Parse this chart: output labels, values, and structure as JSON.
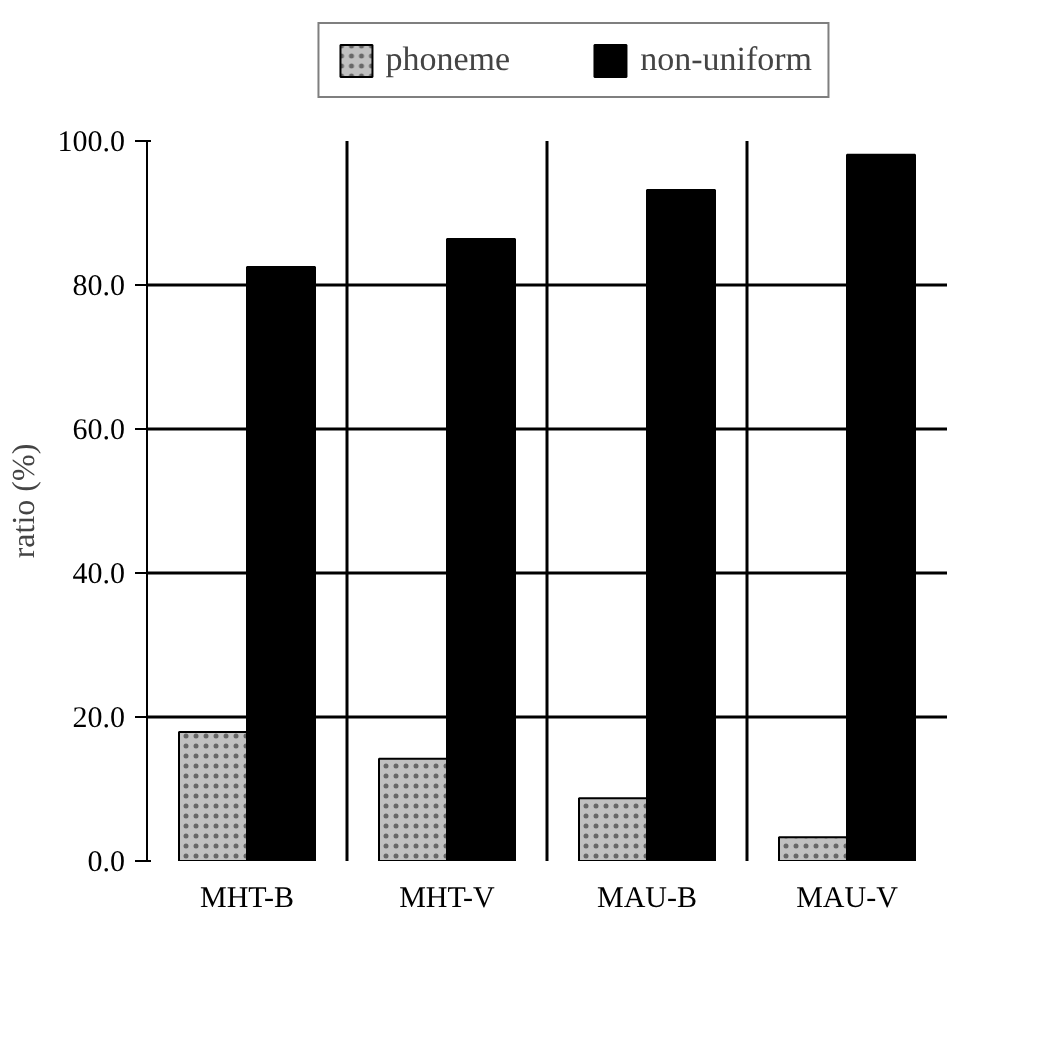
{
  "chart_data": {
    "type": "bar",
    "ylabel": "ratio (%)",
    "categories": [
      "MHT-B",
      "MHT-V",
      "MAU-B",
      "MAU-V"
    ],
    "series": [
      {
        "name": "phoneme",
        "color": "#c0c0c0",
        "values": [
          17.9,
          14.2,
          8.7,
          3.3
        ]
      },
      {
        "name": "non-uniform",
        "color": "#000000",
        "values": [
          82.5,
          86.4,
          93.2,
          98.1
        ]
      }
    ],
    "ylim": [
      0,
      100
    ],
    "yticks": [
      {
        "value": 0,
        "label": "0.0"
      },
      {
        "value": 20,
        "label": "20.0"
      },
      {
        "value": 40,
        "label": "40.0"
      },
      {
        "value": 60,
        "label": "60.0"
      },
      {
        "value": 80,
        "label": "80.0"
      },
      {
        "value": 100,
        "label": "100.0"
      }
    ],
    "grid": true,
    "legend": "top"
  }
}
